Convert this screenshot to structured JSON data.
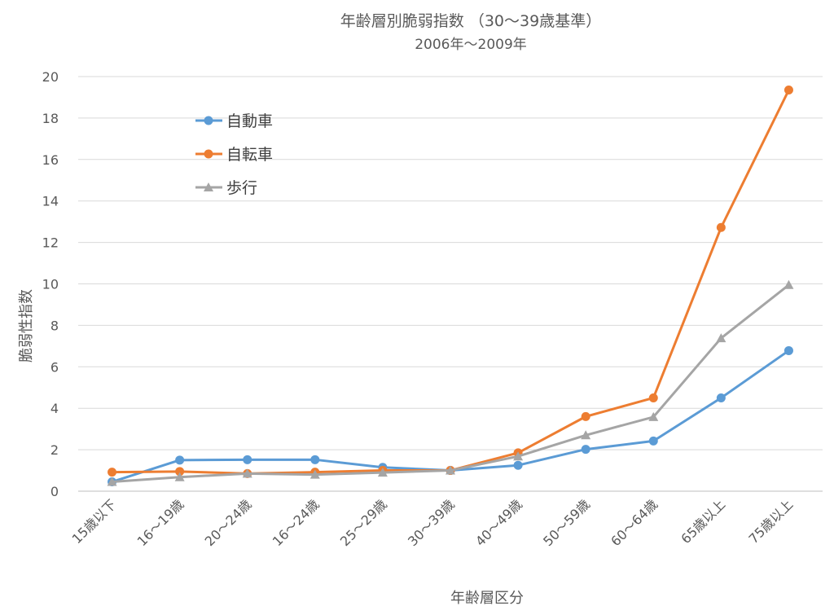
{
  "chart_data": {
    "type": "line",
    "title": "年齢層別脆弱指数 （30～39歳基準）",
    "subtitle": "2006年～2009年",
    "xlabel": "年齢層区分",
    "ylabel": "脆弱性指数",
    "ylim": [
      0,
      20
    ],
    "yticks": [
      "0",
      "2",
      "4",
      "6",
      "8",
      "10",
      "12",
      "14",
      "16",
      "18",
      "20"
    ],
    "grid": true,
    "legend_position": "upper-left",
    "categories": [
      "15歳以下",
      "16～19歳",
      "20～24歳",
      "16～24歳",
      "25～29歳",
      "30～39歳",
      "40～49歳",
      "50～59歳",
      "60～64歳",
      "65歳以上",
      "75歳以上"
    ],
    "series": [
      {
        "name": "自動車",
        "color": "#5b9bd5",
        "marker": "circle",
        "values": [
          0.45,
          1.5,
          1.52,
          1.52,
          1.15,
          1.0,
          1.25,
          2.02,
          2.42,
          4.5,
          6.78
        ]
      },
      {
        "name": "自転車",
        "color": "#ed7d31",
        "marker": "circle",
        "values": [
          0.92,
          0.95,
          0.85,
          0.92,
          1.0,
          1.0,
          1.85,
          3.6,
          4.5,
          12.72,
          19.35
        ]
      },
      {
        "name": "歩行",
        "color": "#a5a5a5",
        "marker": "triangle",
        "values": [
          0.45,
          0.68,
          0.85,
          0.8,
          0.9,
          1.0,
          1.68,
          2.7,
          3.58,
          7.38,
          9.95
        ]
      }
    ]
  }
}
